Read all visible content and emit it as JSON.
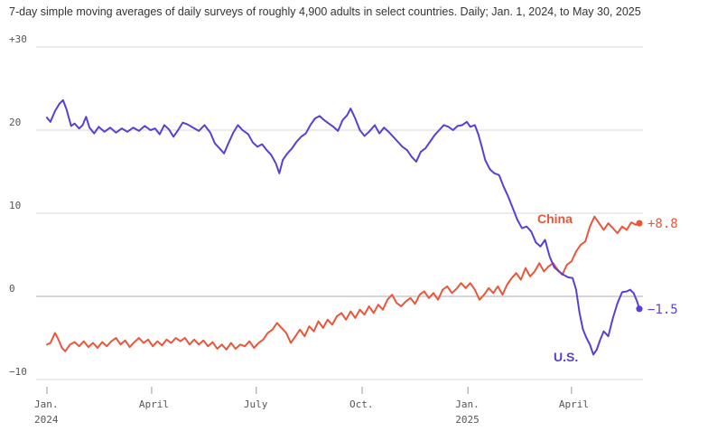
{
  "subtitle": "7-day simple moving averages of daily surveys of roughly 4,900 adults in select countries. Daily; Jan. 1, 2024, to May 30, 2025",
  "colors": {
    "us": "#5b3fd2",
    "china": "#e8573a",
    "grid": "#ebebeb",
    "zero": "#c8c8c8"
  },
  "chart_data": {
    "type": "line",
    "title": "",
    "xlabel": "",
    "ylabel": "",
    "xlim": [
      "2024-01-01",
      "2025-05-30"
    ],
    "ylim": [
      -10,
      30
    ],
    "grid": true,
    "y_ticks": [
      {
        "value": 30,
        "label": "+30"
      },
      {
        "value": 20,
        "label": "20"
      },
      {
        "value": 10,
        "label": "10"
      },
      {
        "value": 0,
        "label": "0"
      },
      {
        "value": -10,
        "label": "−10"
      }
    ],
    "x_ticks": [
      {
        "date": "2024-01-01",
        "label": "Jan.",
        "sublabel": "2024"
      },
      {
        "date": "2024-04-01",
        "label": "April",
        "sublabel": ""
      },
      {
        "date": "2024-07-01",
        "label": "July",
        "sublabel": ""
      },
      {
        "date": "2024-10-01",
        "label": "Oct.",
        "sublabel": ""
      },
      {
        "date": "2025-01-01",
        "label": "Jan.",
        "sublabel": "2025"
      },
      {
        "date": "2025-04-01",
        "label": "April",
        "sublabel": ""
      }
    ],
    "series": [
      {
        "name": "U.S.",
        "end_label": "−1.5",
        "color": "#5b3fd2",
        "points": [
          [
            "2024-01-01",
            21.5
          ],
          [
            "2024-01-04",
            21.0
          ],
          [
            "2024-01-08",
            22.3
          ],
          [
            "2024-01-12",
            23.2
          ],
          [
            "2024-01-15",
            23.6
          ],
          [
            "2024-01-18",
            22.5
          ],
          [
            "2024-01-22",
            20.5
          ],
          [
            "2024-01-25",
            20.8
          ],
          [
            "2024-01-29",
            20.2
          ],
          [
            "2024-02-01",
            20.6
          ],
          [
            "2024-02-04",
            21.6
          ],
          [
            "2024-02-07",
            20.3
          ],
          [
            "2024-02-11",
            19.6
          ],
          [
            "2024-02-15",
            20.4
          ],
          [
            "2024-02-20",
            19.8
          ],
          [
            "2024-02-25",
            20.3
          ],
          [
            "2024-03-01",
            19.7
          ],
          [
            "2024-03-06",
            20.2
          ],
          [
            "2024-03-11",
            19.8
          ],
          [
            "2024-03-16",
            20.3
          ],
          [
            "2024-03-21",
            19.9
          ],
          [
            "2024-03-26",
            20.5
          ],
          [
            "2024-03-31",
            20.0
          ],
          [
            "2024-04-04",
            20.2
          ],
          [
            "2024-04-08",
            19.5
          ],
          [
            "2024-04-12",
            20.6
          ],
          [
            "2024-04-16",
            20.1
          ],
          [
            "2024-04-20",
            19.2
          ],
          [
            "2024-04-24",
            20.0
          ],
          [
            "2024-04-28",
            20.9
          ],
          [
            "2024-05-02",
            20.7
          ],
          [
            "2024-05-07",
            20.3
          ],
          [
            "2024-05-12",
            19.9
          ],
          [
            "2024-05-17",
            20.6
          ],
          [
            "2024-05-22",
            19.7
          ],
          [
            "2024-05-26",
            18.4
          ],
          [
            "2024-05-30",
            17.8
          ],
          [
            "2024-06-03",
            17.2
          ],
          [
            "2024-06-07",
            18.5
          ],
          [
            "2024-06-11",
            19.7
          ],
          [
            "2024-06-15",
            20.6
          ],
          [
            "2024-06-19",
            20.0
          ],
          [
            "2024-06-24",
            19.5
          ],
          [
            "2024-06-28",
            18.5
          ],
          [
            "2024-07-02",
            18.0
          ],
          [
            "2024-07-06",
            18.3
          ],
          [
            "2024-07-10",
            17.6
          ],
          [
            "2024-07-14",
            17.0
          ],
          [
            "2024-07-18",
            16.0
          ],
          [
            "2024-07-21",
            14.8
          ],
          [
            "2024-07-24",
            16.4
          ],
          [
            "2024-07-28",
            17.2
          ],
          [
            "2024-08-01",
            17.8
          ],
          [
            "2024-08-05",
            18.6
          ],
          [
            "2024-08-09",
            19.2
          ],
          [
            "2024-08-13",
            19.6
          ],
          [
            "2024-08-17",
            20.6
          ],
          [
            "2024-08-21",
            21.4
          ],
          [
            "2024-08-25",
            21.7
          ],
          [
            "2024-08-29",
            21.2
          ],
          [
            "2024-09-02",
            20.8
          ],
          [
            "2024-09-06",
            20.4
          ],
          [
            "2024-09-10",
            19.9
          ],
          [
            "2024-09-14",
            21.2
          ],
          [
            "2024-09-18",
            21.8
          ],
          [
            "2024-09-21",
            22.6
          ],
          [
            "2024-09-25",
            21.4
          ],
          [
            "2024-09-29",
            20.0
          ],
          [
            "2024-10-03",
            19.3
          ],
          [
            "2024-10-07",
            19.8
          ],
          [
            "2024-10-12",
            20.6
          ],
          [
            "2024-10-16",
            19.6
          ],
          [
            "2024-10-20",
            20.3
          ],
          [
            "2024-10-24",
            19.8
          ],
          [
            "2024-10-28",
            19.2
          ],
          [
            "2024-11-01",
            18.6
          ],
          [
            "2024-11-05",
            18.0
          ],
          [
            "2024-11-09",
            17.6
          ],
          [
            "2024-11-13",
            16.8
          ],
          [
            "2024-11-17",
            16.2
          ],
          [
            "2024-11-21",
            17.4
          ],
          [
            "2024-11-25",
            17.8
          ],
          [
            "2024-11-29",
            18.6
          ],
          [
            "2024-12-03",
            19.4
          ],
          [
            "2024-12-07",
            20.0
          ],
          [
            "2024-12-11",
            20.6
          ],
          [
            "2024-12-15",
            20.4
          ],
          [
            "2024-12-19",
            20.0
          ],
          [
            "2024-12-23",
            20.5
          ],
          [
            "2024-12-27",
            20.6
          ],
          [
            "2024-12-31",
            21.0
          ],
          [
            "2025-01-03",
            20.4
          ],
          [
            "2025-01-07",
            20.6
          ],
          [
            "2025-01-10",
            19.5
          ],
          [
            "2025-01-13",
            18.0
          ],
          [
            "2025-01-16",
            16.4
          ],
          [
            "2025-01-20",
            15.3
          ],
          [
            "2025-01-24",
            14.8
          ],
          [
            "2025-01-28",
            14.6
          ],
          [
            "2025-02-01",
            13.2
          ],
          [
            "2025-02-05",
            12.0
          ],
          [
            "2025-02-09",
            10.6
          ],
          [
            "2025-02-13",
            9.2
          ],
          [
            "2025-02-17",
            8.2
          ],
          [
            "2025-02-21",
            8.4
          ],
          [
            "2025-02-25",
            7.8
          ],
          [
            "2025-03-01",
            6.5
          ],
          [
            "2025-03-05",
            6.0
          ],
          [
            "2025-03-09",
            6.8
          ],
          [
            "2025-03-13",
            4.8
          ],
          [
            "2025-03-17",
            3.5
          ],
          [
            "2025-03-21",
            3.0
          ],
          [
            "2025-03-25",
            2.6
          ],
          [
            "2025-03-29",
            2.3
          ],
          [
            "2025-04-02",
            2.2
          ],
          [
            "2025-04-05",
            0.8
          ],
          [
            "2025-04-08",
            -2.0
          ],
          [
            "2025-04-11",
            -4.0
          ],
          [
            "2025-04-14",
            -5.0
          ],
          [
            "2025-04-17",
            -5.8
          ],
          [
            "2025-04-20",
            -7.0
          ],
          [
            "2025-04-23",
            -6.4
          ],
          [
            "2025-04-26",
            -5.2
          ],
          [
            "2025-04-29",
            -4.2
          ],
          [
            "2025-05-03",
            -4.8
          ],
          [
            "2025-05-07",
            -2.6
          ],
          [
            "2025-05-11",
            -0.8
          ],
          [
            "2025-05-15",
            0.5
          ],
          [
            "2025-05-19",
            0.6
          ],
          [
            "2025-05-22",
            0.8
          ],
          [
            "2025-05-25",
            0.4
          ],
          [
            "2025-05-28",
            -0.6
          ],
          [
            "2025-05-30",
            -1.5
          ]
        ]
      },
      {
        "name": "China",
        "end_label": "+8.8",
        "color": "#e8573a",
        "points": [
          [
            "2024-01-01",
            -5.8
          ],
          [
            "2024-01-04",
            -5.6
          ],
          [
            "2024-01-08",
            -4.4
          ],
          [
            "2024-01-11",
            -5.2
          ],
          [
            "2024-01-14",
            -6.2
          ],
          [
            "2024-01-17",
            -6.6
          ],
          [
            "2024-01-21",
            -5.8
          ],
          [
            "2024-01-25",
            -5.5
          ],
          [
            "2024-01-29",
            -6.0
          ],
          [
            "2024-02-02",
            -5.4
          ],
          [
            "2024-02-06",
            -6.1
          ],
          [
            "2024-02-10",
            -5.6
          ],
          [
            "2024-02-14",
            -6.2
          ],
          [
            "2024-02-18",
            -5.5
          ],
          [
            "2024-02-22",
            -6.0
          ],
          [
            "2024-02-26",
            -5.4
          ],
          [
            "2024-03-01",
            -5.0
          ],
          [
            "2024-03-05",
            -5.8
          ],
          [
            "2024-03-09",
            -5.3
          ],
          [
            "2024-03-13",
            -6.1
          ],
          [
            "2024-03-17",
            -5.5
          ],
          [
            "2024-03-21",
            -5.0
          ],
          [
            "2024-03-25",
            -5.6
          ],
          [
            "2024-03-29",
            -5.2
          ],
          [
            "2024-04-02",
            -6.0
          ],
          [
            "2024-04-06",
            -5.4
          ],
          [
            "2024-04-10",
            -5.9
          ],
          [
            "2024-04-14",
            -5.2
          ],
          [
            "2024-04-18",
            -5.6
          ],
          [
            "2024-04-22",
            -5.0
          ],
          [
            "2024-04-26",
            -5.4
          ],
          [
            "2024-04-30",
            -5.0
          ],
          [
            "2024-05-04",
            -5.8
          ],
          [
            "2024-05-08",
            -5.2
          ],
          [
            "2024-05-12",
            -5.8
          ],
          [
            "2024-05-16",
            -5.3
          ],
          [
            "2024-05-20",
            -6.0
          ],
          [
            "2024-05-24",
            -5.5
          ],
          [
            "2024-05-28",
            -6.3
          ],
          [
            "2024-06-01",
            -5.8
          ],
          [
            "2024-06-05",
            -6.4
          ],
          [
            "2024-06-09",
            -5.6
          ],
          [
            "2024-06-13",
            -6.3
          ],
          [
            "2024-06-17",
            -5.8
          ],
          [
            "2024-06-21",
            -6.0
          ],
          [
            "2024-06-25",
            -5.4
          ],
          [
            "2024-06-29",
            -6.2
          ],
          [
            "2024-07-03",
            -5.6
          ],
          [
            "2024-07-07",
            -5.2
          ],
          [
            "2024-07-11",
            -4.4
          ],
          [
            "2024-07-15",
            -4.0
          ],
          [
            "2024-07-19",
            -3.2
          ],
          [
            "2024-07-23",
            -3.8
          ],
          [
            "2024-07-27",
            -4.4
          ],
          [
            "2024-07-31",
            -5.6
          ],
          [
            "2024-08-04",
            -4.8
          ],
          [
            "2024-08-08",
            -4.0
          ],
          [
            "2024-08-12",
            -4.8
          ],
          [
            "2024-08-16",
            -3.6
          ],
          [
            "2024-08-20",
            -4.2
          ],
          [
            "2024-08-24",
            -3.0
          ],
          [
            "2024-08-28",
            -3.8
          ],
          [
            "2024-09-01",
            -2.8
          ],
          [
            "2024-09-05",
            -3.4
          ],
          [
            "2024-09-09",
            -2.4
          ],
          [
            "2024-09-13",
            -2.0
          ],
          [
            "2024-09-17",
            -2.8
          ],
          [
            "2024-09-21",
            -1.8
          ],
          [
            "2024-09-25",
            -2.6
          ],
          [
            "2024-09-29",
            -1.6
          ],
          [
            "2024-10-03",
            -2.2
          ],
          [
            "2024-10-07",
            -1.2
          ],
          [
            "2024-10-11",
            -2.0
          ],
          [
            "2024-10-15",
            -1.0
          ],
          [
            "2024-10-19",
            -1.6
          ],
          [
            "2024-10-23",
            -0.4
          ],
          [
            "2024-10-27",
            0.2
          ],
          [
            "2024-10-31",
            -0.8
          ],
          [
            "2024-11-04",
            -1.2
          ],
          [
            "2024-11-08",
            -0.6
          ],
          [
            "2024-11-12",
            -0.2
          ],
          [
            "2024-11-16",
            -0.9
          ],
          [
            "2024-11-20",
            0.2
          ],
          [
            "2024-11-24",
            0.6
          ],
          [
            "2024-11-28",
            -0.2
          ],
          [
            "2024-12-02",
            0.4
          ],
          [
            "2024-12-06",
            -0.4
          ],
          [
            "2024-12-10",
            0.8
          ],
          [
            "2024-12-14",
            1.2
          ],
          [
            "2024-12-18",
            0.4
          ],
          [
            "2024-12-22",
            0.9
          ],
          [
            "2024-12-26",
            1.6
          ],
          [
            "2024-12-30",
            1.0
          ],
          [
            "2025-01-03",
            1.6
          ],
          [
            "2025-01-07",
            0.8
          ],
          [
            "2025-01-11",
            -0.4
          ],
          [
            "2025-01-15",
            0.2
          ],
          [
            "2025-01-19",
            1.0
          ],
          [
            "2025-01-23",
            0.4
          ],
          [
            "2025-01-27",
            1.2
          ],
          [
            "2025-01-31",
            0.2
          ],
          [
            "2025-02-04",
            1.4
          ],
          [
            "2025-02-08",
            2.2
          ],
          [
            "2025-02-12",
            2.8
          ],
          [
            "2025-02-16",
            2.0
          ],
          [
            "2025-02-20",
            3.4
          ],
          [
            "2025-02-24",
            2.4
          ],
          [
            "2025-02-28",
            3.0
          ],
          [
            "2025-03-04",
            4.0
          ],
          [
            "2025-03-08",
            3.0
          ],
          [
            "2025-03-12",
            3.6
          ],
          [
            "2025-03-16",
            4.0
          ],
          [
            "2025-03-20",
            3.2
          ],
          [
            "2025-03-24",
            2.6
          ],
          [
            "2025-03-28",
            3.8
          ],
          [
            "2025-04-01",
            4.2
          ],
          [
            "2025-04-05",
            5.4
          ],
          [
            "2025-04-09",
            6.2
          ],
          [
            "2025-04-13",
            6.6
          ],
          [
            "2025-04-17",
            8.4
          ],
          [
            "2025-04-21",
            9.6
          ],
          [
            "2025-04-25",
            8.8
          ],
          [
            "2025-04-29",
            8.0
          ],
          [
            "2025-05-03",
            8.8
          ],
          [
            "2025-05-07",
            8.2
          ],
          [
            "2025-05-11",
            7.6
          ],
          [
            "2025-05-15",
            8.4
          ],
          [
            "2025-05-19",
            8.0
          ],
          [
            "2025-05-23",
            8.9
          ],
          [
            "2025-05-27",
            8.6
          ],
          [
            "2025-05-30",
            8.8
          ]
        ]
      }
    ]
  }
}
